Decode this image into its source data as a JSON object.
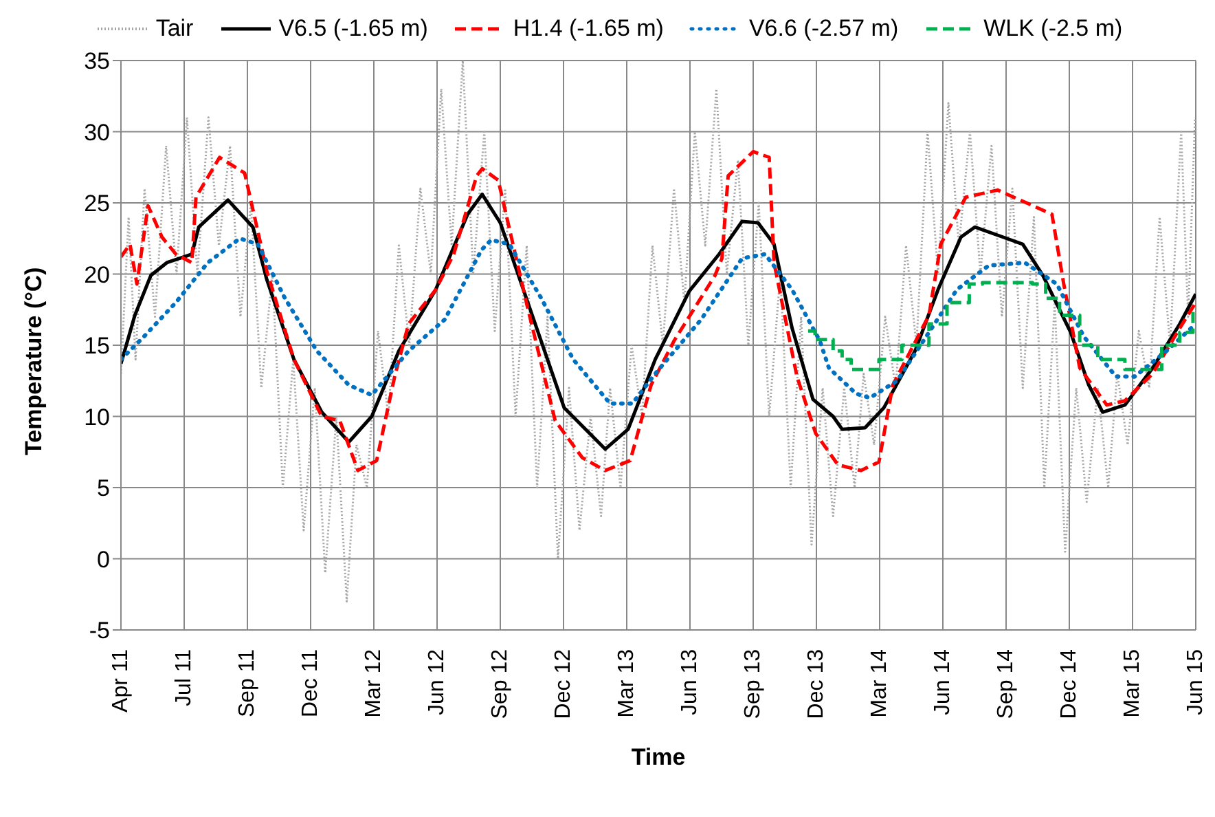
{
  "chart_data": {
    "type": "line",
    "xlabel": "Time",
    "ylabel": "Temperature (°C)",
    "legend": "top",
    "grid": true,
    "marker": "none",
    "xlim": [
      "2011-04-01",
      "2015-06-26"
    ],
    "xticks": [
      {
        "value": "2011-04-01",
        "label": "Apr 11"
      },
      {
        "value": "2011-07-01",
        "label": "Jul 11"
      },
      {
        "value": "2011-09-30",
        "label": "Sep 11"
      },
      {
        "value": "2011-12-30",
        "label": "Dec 11"
      },
      {
        "value": "2012-03-30",
        "label": "Mar 12"
      },
      {
        "value": "2012-06-29",
        "label": "Jun 12"
      },
      {
        "value": "2012-09-28",
        "label": "Sep 12"
      },
      {
        "value": "2012-12-28",
        "label": "Dec 12"
      },
      {
        "value": "2013-03-29",
        "label": "Mar 13"
      },
      {
        "value": "2013-06-28",
        "label": "Jun 13"
      },
      {
        "value": "2013-09-27",
        "label": "Sep 13"
      },
      {
        "value": "2013-12-27",
        "label": "Dec 13"
      },
      {
        "value": "2014-03-28",
        "label": "Mar 14"
      },
      {
        "value": "2014-06-27",
        "label": "Jun 14"
      },
      {
        "value": "2014-09-26",
        "label": "Sep 14"
      },
      {
        "value": "2014-12-26",
        "label": "Dec 14"
      },
      {
        "value": "2015-03-27",
        "label": "Mar 15"
      },
      {
        "value": "2015-06-26",
        "label": "Jun 15"
      }
    ],
    "ylim": [
      -5,
      35
    ],
    "yticks": [
      -5,
      0,
      5,
      10,
      15,
      20,
      25,
      30,
      35
    ],
    "series": [
      {
        "name": "Tair",
        "color": "#a6a6a6",
        "line_style": "dotted",
        "x": [
          "2011-04-01",
          "2011-04-12",
          "2011-04-22",
          "2011-05-05",
          "2011-05-20",
          "2011-06-05",
          "2011-06-20",
          "2011-07-05",
          "2011-07-20",
          "2011-08-05",
          "2011-08-20",
          "2011-09-05",
          "2011-09-20",
          "2011-10-05",
          "2011-10-20",
          "2011-11-05",
          "2011-11-20",
          "2011-12-05",
          "2011-12-20",
          "2012-01-05",
          "2012-01-20",
          "2012-02-05",
          "2012-02-20",
          "2012-03-05",
          "2012-03-20",
          "2012-04-05",
          "2012-04-20",
          "2012-05-05",
          "2012-05-20",
          "2012-06-05",
          "2012-06-20",
          "2012-07-05",
          "2012-07-20",
          "2012-08-05",
          "2012-08-20",
          "2012-09-05",
          "2012-09-20",
          "2012-10-05",
          "2012-10-20",
          "2012-11-05",
          "2012-11-20",
          "2012-12-05",
          "2012-12-20",
          "2013-01-05",
          "2013-01-20",
          "2013-02-05",
          "2013-02-20",
          "2013-03-05",
          "2013-03-20",
          "2013-04-05",
          "2013-04-20",
          "2013-05-05",
          "2013-05-20",
          "2013-06-05",
          "2013-06-20",
          "2013-07-05",
          "2013-07-20",
          "2013-08-05",
          "2013-08-20",
          "2013-09-05",
          "2013-09-20",
          "2013-10-05",
          "2013-10-20",
          "2013-11-05",
          "2013-11-20",
          "2013-12-05",
          "2013-12-20",
          "2014-01-05",
          "2014-01-20",
          "2014-02-05",
          "2014-02-20",
          "2014-03-05",
          "2014-03-20",
          "2014-04-05",
          "2014-04-20",
          "2014-05-05",
          "2014-05-20",
          "2014-06-05",
          "2014-06-20",
          "2014-07-05",
          "2014-07-20",
          "2014-08-05",
          "2014-08-20",
          "2014-09-05",
          "2014-09-20",
          "2014-10-05",
          "2014-10-20",
          "2014-11-05",
          "2014-11-20",
          "2014-12-05",
          "2014-12-20",
          "2015-01-05",
          "2015-01-20",
          "2015-02-05",
          "2015-02-20",
          "2015-03-05",
          "2015-03-20",
          "2015-04-05",
          "2015-04-20",
          "2015-05-05",
          "2015-05-20",
          "2015-06-05",
          "2015-06-15",
          "2015-06-25"
        ],
        "values": [
          13,
          24,
          14,
          26,
          17,
          29,
          20,
          31,
          20,
          31,
          22,
          29,
          17,
          25,
          12,
          20,
          5,
          14,
          2,
          12,
          -1,
          10,
          -3,
          8,
          5,
          16,
          10,
          22,
          15,
          26,
          20,
          33,
          22,
          35,
          20,
          30,
          16,
          26,
          10,
          22,
          5,
          17,
          0,
          12,
          2,
          10,
          3,
          12,
          5,
          15,
          10,
          22,
          15,
          26,
          18,
          30,
          22,
          33,
          20,
          28,
          15,
          25,
          10,
          20,
          5,
          17,
          1,
          12,
          3,
          12,
          5,
          13,
          8,
          17,
          12,
          22,
          15,
          30,
          20,
          32,
          22,
          30,
          20,
          29,
          17,
          26,
          12,
          24,
          5,
          18,
          0.5,
          12,
          4,
          12,
          5,
          13,
          8,
          16,
          12,
          24,
          15,
          30,
          17,
          31
        ]
      },
      {
        "name": "V6.5 (-1.65 m)",
        "color": "#000000",
        "line_style": "solid",
        "x": [
          "2011-04-01",
          "2011-04-21",
          "2011-05-14",
          "2011-06-06",
          "2011-07-12",
          "2011-07-22",
          "2011-09-02",
          "2011-10-08",
          "2011-10-28",
          "2011-12-06",
          "2012-01-15",
          "2012-02-23",
          "2012-03-27",
          "2012-05-05",
          "2012-06-27",
          "2012-08-12",
          "2012-09-02",
          "2012-09-28",
          "2012-11-13",
          "2012-12-29",
          "2013-02-26",
          "2013-03-31",
          "2013-05-09",
          "2013-06-27",
          "2013-08-09",
          "2013-09-11",
          "2013-10-04",
          "2013-10-27",
          "2013-11-22",
          "2013-12-22",
          "2014-01-20",
          "2014-02-02",
          "2014-03-07",
          "2014-04-03",
          "2014-05-18",
          "2014-06-20",
          "2014-07-23",
          "2014-08-12",
          "2014-09-27",
          "2014-10-20",
          "2014-11-18",
          "2014-12-28",
          "2015-01-23",
          "2015-02-12",
          "2015-03-16",
          "2015-04-25",
          "2015-06-03",
          "2015-06-26"
        ],
        "values": [
          13.7,
          17.1,
          19.9,
          20.8,
          21.4,
          23.3,
          25.2,
          23.3,
          19.6,
          14.0,
          10.3,
          8.2,
          10.0,
          14.6,
          18.9,
          24.2,
          25.6,
          23.6,
          17.1,
          10.6,
          7.7,
          9.1,
          14.0,
          18.8,
          21.4,
          23.7,
          23.6,
          22.1,
          16.2,
          11.2,
          10.0,
          9.1,
          9.2,
          10.6,
          14.6,
          18.9,
          22.6,
          23.3,
          22.5,
          22.1,
          19.9,
          15.9,
          12.2,
          10.3,
          10.8,
          13.4,
          16.5,
          18.6
        ]
      },
      {
        "name": "H1.4 (-1.65 m)",
        "color": "#ff0000",
        "line_style": "dashed",
        "x": [
          "2011-04-01",
          "2011-04-14",
          "2011-04-24",
          "2011-05-10",
          "2011-05-30",
          "2011-06-19",
          "2011-07-12",
          "2011-07-18",
          "2011-08-21",
          "2011-09-26",
          "2011-10-28",
          "2011-12-06",
          "2012-01-15",
          "2012-02-10",
          "2012-03-07",
          "2012-04-03",
          "2012-04-29",
          "2012-05-19",
          "2012-06-27",
          "2012-07-23",
          "2012-08-25",
          "2012-09-02",
          "2012-09-25",
          "2012-11-06",
          "2012-12-16",
          "2013-01-24",
          "2013-02-26",
          "2013-04-03",
          "2013-05-03",
          "2013-06-05",
          "2013-08-03",
          "2013-08-13",
          "2013-08-22",
          "2013-09-27",
          "2013-10-20",
          "2013-10-27",
          "2013-11-29",
          "2013-12-26",
          "2014-01-27",
          "2014-03-01",
          "2014-03-27",
          "2014-04-16",
          "2014-06-07",
          "2014-06-24",
          "2014-07-30",
          "2014-09-14",
          "2014-10-30",
          "2014-12-01",
          "2014-12-18",
          "2015-01-10",
          "2015-02-18",
          "2015-03-16",
          "2015-04-25",
          "2015-06-03",
          "2015-06-26"
        ],
        "values": [
          21.2,
          22.1,
          19.3,
          24.8,
          22.6,
          21.4,
          20.8,
          25.4,
          28.2,
          27.1,
          20.2,
          14.0,
          10.0,
          9.7,
          6.2,
          6.9,
          12.8,
          16.5,
          18.9,
          21.4,
          26.9,
          27.4,
          26.6,
          17.7,
          9.7,
          7.1,
          6.2,
          6.9,
          12.2,
          15.3,
          19.9,
          21.1,
          26.9,
          28.6,
          28.2,
          20.8,
          12.8,
          8.8,
          6.6,
          6.2,
          6.8,
          12.2,
          17.1,
          22.1,
          25.4,
          25.9,
          24.9,
          24.2,
          19.3,
          13.4,
          10.8,
          11.1,
          13.0,
          16.2,
          18.0
        ]
      },
      {
        "name": "V6.6 (-2.57 m)",
        "color": "#0070c0",
        "line_style": "dotted",
        "x": [
          "2011-04-01",
          "2011-05-04",
          "2011-06-19",
          "2011-08-04",
          "2011-09-19",
          "2011-10-15",
          "2011-11-23",
          "2012-01-08",
          "2012-02-23",
          "2012-03-27",
          "2012-05-19",
          "2012-07-10",
          "2012-09-01",
          "2012-09-15",
          "2012-10-11",
          "2012-11-26",
          "2013-01-11",
          "2013-03-05",
          "2013-04-06",
          "2013-05-09",
          "2013-07-14",
          "2013-09-11",
          "2013-10-14",
          "2013-11-22",
          "2014-01-01",
          "2014-01-14",
          "2014-02-22",
          "2014-03-14",
          "2014-04-22",
          "2014-06-07",
          "2014-07-17",
          "2014-09-01",
          "2014-10-23",
          "2014-12-08",
          "2015-01-16",
          "2015-03-03",
          "2015-03-30",
          "2015-05-15",
          "2015-06-26"
        ],
        "values": [
          14.0,
          15.6,
          18.0,
          20.8,
          22.5,
          22.1,
          18.3,
          14.6,
          12.2,
          11.5,
          14.6,
          16.8,
          21.7,
          22.4,
          22.1,
          18.3,
          14.0,
          10.9,
          10.9,
          13.0,
          16.8,
          21.1,
          21.4,
          18.9,
          15.3,
          13.4,
          11.6,
          11.3,
          12.5,
          15.9,
          18.9,
          20.6,
          20.8,
          19.3,
          15.6,
          12.8,
          12.8,
          14.6,
          16.5
        ]
      },
      {
        "name": "WLK (-2.5 m)",
        "type": "step",
        "color": "#00b050",
        "line_style": "dashed",
        "x": [
          "2013-12-15",
          "2013-12-25",
          "2014-01-20",
          "2014-02-02",
          "2014-02-15",
          "2014-03-27",
          "2014-04-29",
          "2014-06-07",
          "2014-07-03",
          "2014-08-04",
          "2014-08-23",
          "2014-10-02",
          "2014-11-03",
          "2014-11-22",
          "2014-12-12",
          "2015-01-10",
          "2015-02-05",
          "2015-03-16",
          "2015-05-08",
          "2015-06-03",
          "2015-06-22"
        ],
        "values": [
          16.0,
          15.4,
          14.6,
          14.0,
          13.3,
          14.0,
          15.0,
          16.5,
          18.0,
          19.3,
          19.4,
          19.4,
          19.3,
          18.3,
          17.1,
          15.0,
          14.0,
          13.3,
          15.0,
          15.9,
          17.4
        ]
      }
    ]
  }
}
